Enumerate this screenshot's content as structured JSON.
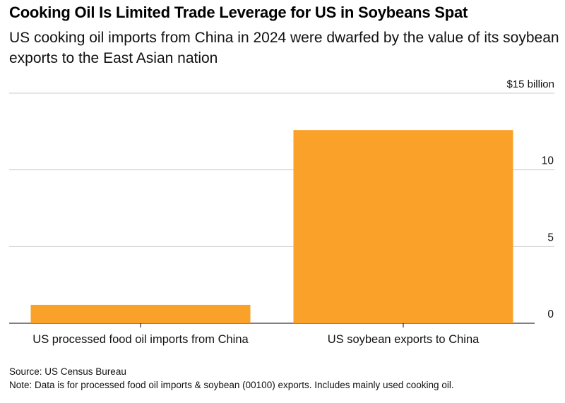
{
  "chart_data": {
    "type": "bar",
    "title": "Cooking Oil Is Limited Trade Leverage for US in Soybeans Spat",
    "subtitle": "US cooking oil imports from China in 2024 were dwarfed by the value of its soybean exports to the East Asian nation",
    "categories": [
      "US processed food oil imports from China",
      "US soybean exports to China"
    ],
    "values": [
      1.2,
      12.6
    ],
    "ylabel": "",
    "xlabel": "",
    "ylim": [
      0,
      15
    ],
    "yticks": [
      {
        "value": 0,
        "label": "0"
      },
      {
        "value": 5,
        "label": "5"
      },
      {
        "value": 10,
        "label": "10"
      },
      {
        "value": 15,
        "label": "$15 billion"
      }
    ],
    "bar_color": "#FAA12A",
    "grid": true,
    "source": "Source: US Census Bureau",
    "note": "Note: Data is for processed food oil imports & soybean (00100) exports. Includes mainly used cooking oil."
  }
}
